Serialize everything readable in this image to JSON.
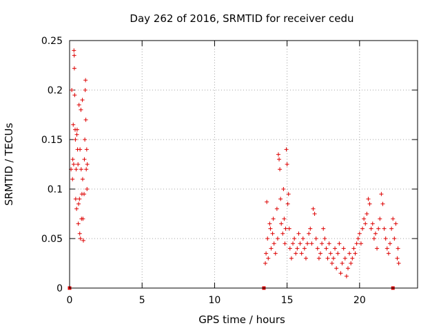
{
  "chart_data": {
    "type": "scatter",
    "title": "Day 262 of 2016, SRMTID for receiver cedu",
    "xlabel": "GPS time / hours",
    "ylabel": "SRMTID / TECUs",
    "xlim": [
      0,
      24
    ],
    "ylim": [
      0,
      0.25
    ],
    "xticks": [
      0,
      5,
      10,
      15,
      20
    ],
    "xtick_labels": [
      "0",
      "5",
      "10",
      "15",
      "20"
    ],
    "yticks": [
      0,
      0.05,
      0.1,
      0.15,
      0.2,
      0.25
    ],
    "ytick_labels": [
      "0",
      "0.05",
      "0.1",
      "0.15",
      "0.2",
      "0.25"
    ],
    "grid": true,
    "marker_color": "#dd0000",
    "series": [
      {
        "name": "SRMTID",
        "marker": "plus",
        "points": [
          [
            0.1,
            0.12
          ],
          [
            0.15,
            0.2
          ],
          [
            0.2,
            0.11
          ],
          [
            0.22,
            0.13
          ],
          [
            0.25,
            0.165
          ],
          [
            0.28,
            0.125
          ],
          [
            0.3,
            0.24
          ],
          [
            0.32,
            0.235
          ],
          [
            0.33,
            0.222
          ],
          [
            0.35,
            0.195
          ],
          [
            0.38,
            0.16
          ],
          [
            0.4,
            0.15
          ],
          [
            0.42,
            0.09
          ],
          [
            0.45,
            0.12
          ],
          [
            0.48,
            0.08
          ],
          [
            0.5,
            0.155
          ],
          [
            0.52,
            0.16
          ],
          [
            0.55,
            0.14
          ],
          [
            0.58,
            0.125
          ],
          [
            0.6,
            0.065
          ],
          [
            0.62,
            0.085
          ],
          [
            0.65,
            0.185
          ],
          [
            0.68,
            0.09
          ],
          [
            0.7,
            0.055
          ],
          [
            0.72,
            0.14
          ],
          [
            0.75,
            0.05
          ],
          [
            0.78,
            0.18
          ],
          [
            0.8,
            0.12
          ],
          [
            0.82,
            0.07
          ],
          [
            0.85,
            0.095
          ],
          [
            0.88,
            0.19
          ],
          [
            0.9,
            0.11
          ],
          [
            0.92,
            0.07
          ],
          [
            0.95,
            0.048
          ],
          [
            1.0,
            0.095
          ],
          [
            1.02,
            0.13
          ],
          [
            1.05,
            0.15
          ],
          [
            1.08,
            0.2
          ],
          [
            1.1,
            0.21
          ],
          [
            1.12,
            0.17
          ],
          [
            1.15,
            0.12
          ],
          [
            1.18,
            0.14
          ],
          [
            1.2,
            0.1
          ],
          [
            1.22,
            0.125
          ],
          [
            13.5,
            0.025
          ],
          [
            13.55,
            0.035
          ],
          [
            13.6,
            0.087
          ],
          [
            13.65,
            0.05
          ],
          [
            13.7,
            0.03
          ],
          [
            13.8,
            0.065
          ],
          [
            13.85,
            0.06
          ],
          [
            13.9,
            0.04
          ],
          [
            14.0,
            0.055
          ],
          [
            14.05,
            0.07
          ],
          [
            14.1,
            0.045
          ],
          [
            14.2,
            0.035
          ],
          [
            14.3,
            0.08
          ],
          [
            14.35,
            0.05
          ],
          [
            14.4,
            0.135
          ],
          [
            14.45,
            0.13
          ],
          [
            14.5,
            0.12
          ],
          [
            14.55,
            0.09
          ],
          [
            14.6,
            0.065
          ],
          [
            14.7,
            0.055
          ],
          [
            14.75,
            0.1
          ],
          [
            14.8,
            0.07
          ],
          [
            14.85,
            0.045
          ],
          [
            14.9,
            0.06
          ],
          [
            14.95,
            0.14
          ],
          [
            15.0,
            0.125
          ],
          [
            15.05,
            0.085
          ],
          [
            15.1,
            0.095
          ],
          [
            15.15,
            0.06
          ],
          [
            15.2,
            0.04
          ],
          [
            15.3,
            0.03
          ],
          [
            15.4,
            0.045
          ],
          [
            15.5,
            0.05
          ],
          [
            15.6,
            0.035
          ],
          [
            15.7,
            0.04
          ],
          [
            15.8,
            0.055
          ],
          [
            15.9,
            0.045
          ],
          [
            16.0,
            0.035
          ],
          [
            16.1,
            0.05
          ],
          [
            16.2,
            0.04
          ],
          [
            16.3,
            0.03
          ],
          [
            16.4,
            0.045
          ],
          [
            16.5,
            0.055
          ],
          [
            16.6,
            0.06
          ],
          [
            16.7,
            0.045
          ],
          [
            16.8,
            0.08
          ],
          [
            16.9,
            0.075
          ],
          [
            17.0,
            0.05
          ],
          [
            17.1,
            0.04
          ],
          [
            17.2,
            0.03
          ],
          [
            17.3,
            0.035
          ],
          [
            17.4,
            0.045
          ],
          [
            17.5,
            0.06
          ],
          [
            17.6,
            0.05
          ],
          [
            17.7,
            0.04
          ],
          [
            17.8,
            0.03
          ],
          [
            17.9,
            0.045
          ],
          [
            18.0,
            0.035
          ],
          [
            18.1,
            0.025
          ],
          [
            18.2,
            0.03
          ],
          [
            18.3,
            0.04
          ],
          [
            18.4,
            0.02
          ],
          [
            18.5,
            0.035
          ],
          [
            18.6,
            0.045
          ],
          [
            18.7,
            0.015
          ],
          [
            18.8,
            0.025
          ],
          [
            18.9,
            0.04
          ],
          [
            19.0,
            0.03
          ],
          [
            19.1,
            0.012
          ],
          [
            19.2,
            0.02
          ],
          [
            19.3,
            0.035
          ],
          [
            19.4,
            0.025
          ],
          [
            19.5,
            0.03
          ],
          [
            19.6,
            0.04
          ],
          [
            19.7,
            0.035
          ],
          [
            19.8,
            0.045
          ],
          [
            19.9,
            0.05
          ],
          [
            20.0,
            0.055
          ],
          [
            20.1,
            0.045
          ],
          [
            20.2,
            0.06
          ],
          [
            20.3,
            0.07
          ],
          [
            20.4,
            0.065
          ],
          [
            20.5,
            0.075
          ],
          [
            20.6,
            0.09
          ],
          [
            20.7,
            0.085
          ],
          [
            20.8,
            0.06
          ],
          [
            20.9,
            0.065
          ],
          [
            21.0,
            0.05
          ],
          [
            21.1,
            0.055
          ],
          [
            21.2,
            0.04
          ],
          [
            21.3,
            0.06
          ],
          [
            21.4,
            0.07
          ],
          [
            21.5,
            0.095
          ],
          [
            21.6,
            0.085
          ],
          [
            21.7,
            0.06
          ],
          [
            21.8,
            0.05
          ],
          [
            21.9,
            0.04
          ],
          [
            22.0,
            0.035
          ],
          [
            22.1,
            0.045
          ],
          [
            22.2,
            0.06
          ],
          [
            22.3,
            0.07
          ],
          [
            22.4,
            0.05
          ],
          [
            22.5,
            0.065
          ],
          [
            22.6,
            0.03
          ],
          [
            22.65,
            0.04
          ],
          [
            22.7,
            0.025
          ]
        ]
      }
    ],
    "boundary_markers_x": [
      0.0,
      13.4,
      22.3
    ]
  }
}
